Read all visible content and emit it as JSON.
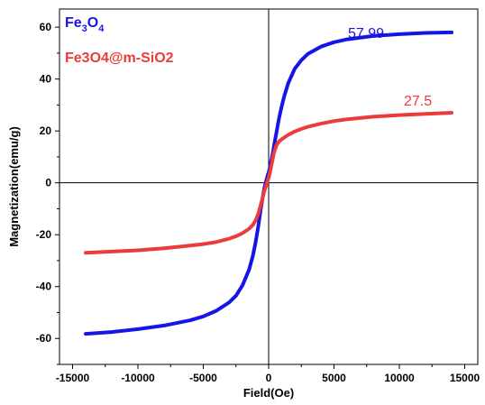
{
  "chart_data": {
    "type": "line",
    "xlabel": "Field(Oe)",
    "ylabel": "Magnetization(emu/g)",
    "xlim": [
      -16000,
      16000
    ],
    "ylim": [
      -70,
      67
    ],
    "x_ticks": [
      -15000,
      -10000,
      -5000,
      0,
      5000,
      10000,
      15000
    ],
    "y_ticks": [
      -60,
      -40,
      -20,
      0,
      20,
      40,
      60
    ],
    "x_tick_labels": [
      "-15000",
      "-10000",
      "-5000",
      "0",
      "5000",
      "10000",
      "15000"
    ],
    "y_tick_labels": [
      "-60",
      "-40",
      "-20",
      "0",
      "20",
      "40",
      "60"
    ],
    "zero_lines": true,
    "legend_position": "top-left",
    "series": [
      {
        "name": "Fe3O4",
        "legend_main": "Fe",
        "legend_sub1": "3",
        "legend_mid": "O",
        "legend_sub2": "4",
        "color": "#1515e6",
        "x": [
          -14000,
          -12000,
          -10000,
          -8000,
          -6000,
          -5000,
          -4000,
          -3000,
          -2500,
          -2000,
          -1500,
          -1200,
          -1000,
          -800,
          -600,
          -400,
          -300,
          -200,
          -100,
          0,
          100,
          200,
          300,
          400,
          600,
          800,
          1000,
          1200,
          1500,
          2000,
          2500,
          3000,
          4000,
          5000,
          6000,
          8000,
          10000,
          12000,
          14000
        ],
        "y": [
          -58.2,
          -57.5,
          -56.4,
          -55.0,
          -53.0,
          -51.5,
          -49.3,
          -46.0,
          -43.5,
          -39.5,
          -33.5,
          -28.0,
          -23.0,
          -17.0,
          -10.0,
          -4.0,
          -1.5,
          0.5,
          2.5,
          4.0,
          6.0,
          8.5,
          11.0,
          14.0,
          19.5,
          25.0,
          29.5,
          33.5,
          38.5,
          44.0,
          47.3,
          49.7,
          52.5,
          54.2,
          55.3,
          56.6,
          57.3,
          57.8,
          57.99
        ]
      },
      {
        "name": "Fe3O4@m-SiO2",
        "legend_main": "Fe3O4@m-SiO2",
        "color": "#ec3b3b",
        "x": [
          -14000,
          -12000,
          -10000,
          -8000,
          -6000,
          -5000,
          -4000,
          -3000,
          -2500,
          -2000,
          -1500,
          -1200,
          -1000,
          -800,
          -600,
          -400,
          -300,
          -200,
          -100,
          0,
          100,
          200,
          300,
          400,
          600,
          800,
          1000,
          1200,
          1500,
          2000,
          2500,
          3000,
          4000,
          5000,
          6000,
          8000,
          10000,
          12000,
          14000
        ],
        "y": [
          -27.0,
          -26.5,
          -26.0,
          -25.2,
          -24.2,
          -23.6,
          -22.8,
          -21.5,
          -20.6,
          -19.4,
          -17.7,
          -16.2,
          -14.5,
          -12.0,
          -8.5,
          -4.5,
          -2.8,
          -1.2,
          0.5,
          2.0,
          4.0,
          6.5,
          9.0,
          11.5,
          14.5,
          16.0,
          16.8,
          17.5,
          18.5,
          19.8,
          20.8,
          21.6,
          22.8,
          23.8,
          24.5,
          25.5,
          26.1,
          26.6,
          27.0
        ]
      }
    ],
    "annotations": [
      "57.99",
      "27.5"
    ]
  }
}
